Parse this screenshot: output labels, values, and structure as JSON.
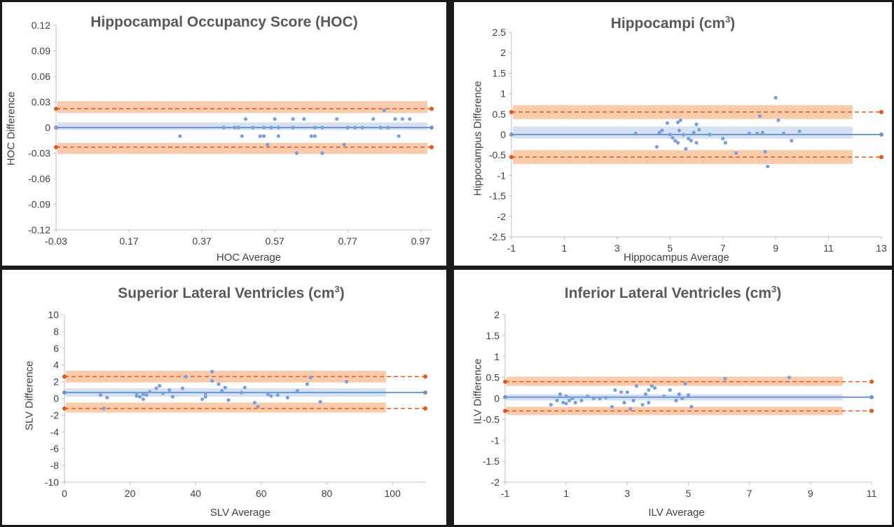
{
  "chart_data": [
    {
      "type": "scatter",
      "title": "Hippocampal Occupancy Score (HOC)",
      "title_sup": "",
      "xlabel": "HOC Average",
      "ylabel": "HOC Difference",
      "xlim": [
        -0.03,
        1.0
      ],
      "ylim": [
        -0.12,
        0.12
      ],
      "xticks": [
        "-0.03",
        "0.17",
        "0.37",
        "0.57",
        "0.77",
        "0.97"
      ],
      "yticks": [
        "-0.12",
        "-0.09",
        "-0.06",
        "-0.03",
        "0",
        "0.03",
        "0.06",
        "0.09",
        "0.12"
      ],
      "mean": 0,
      "mean_ci": [
        -0.003,
        0.006
      ],
      "loa_upper": 0.022,
      "loa_upper_ci": [
        0.017,
        0.031
      ],
      "loa_lower": -0.023,
      "loa_lower_ci": [
        -0.031,
        -0.018
      ],
      "points": [
        [
          0.31,
          -0.01
        ],
        [
          0.43,
          0.0
        ],
        [
          0.46,
          0.0
        ],
        [
          0.47,
          0.0
        ],
        [
          0.48,
          -0.01
        ],
        [
          0.49,
          0.01
        ],
        [
          0.51,
          0.0
        ],
        [
          0.53,
          -0.01
        ],
        [
          0.54,
          -0.01
        ],
        [
          0.54,
          0.0
        ],
        [
          0.55,
          -0.02
        ],
        [
          0.56,
          0.0
        ],
        [
          0.57,
          0.01
        ],
        [
          0.58,
          0.0
        ],
        [
          0.58,
          -0.01
        ],
        [
          0.62,
          0.01
        ],
        [
          0.62,
          0.0
        ],
        [
          0.63,
          -0.03
        ],
        [
          0.65,
          0.01
        ],
        [
          0.67,
          -0.01
        ],
        [
          0.68,
          -0.01
        ],
        [
          0.68,
          0.0
        ],
        [
          0.7,
          -0.03
        ],
        [
          0.7,
          0.0
        ],
        [
          0.74,
          0.01
        ],
        [
          0.76,
          -0.02
        ],
        [
          0.77,
          0.0
        ],
        [
          0.79,
          0.0
        ],
        [
          0.81,
          0.0
        ],
        [
          0.84,
          0.01
        ],
        [
          0.86,
          0.0
        ],
        [
          0.87,
          0.02
        ],
        [
          0.88,
          0.0
        ],
        [
          0.9,
          0.01
        ],
        [
          0.91,
          -0.01
        ],
        [
          0.92,
          0.01
        ],
        [
          0.94,
          0.01
        ]
      ]
    },
    {
      "type": "scatter",
      "title": "Hippocampi (cm",
      "title_sup": "3",
      "title_end": ")",
      "xlabel": "Hippocampus Average",
      "ylabel": "Hippocampus Difference",
      "xlim": [
        -1,
        13
      ],
      "ylim": [
        -2.5,
        2.5
      ],
      "xticks": [
        "-1",
        "1",
        "3",
        "5",
        "7",
        "9",
        "11",
        "13"
      ],
      "yticks": [
        "-2.5",
        "-2",
        "-1.5",
        "-1",
        "-0.5",
        "0",
        "0.5",
        "1",
        "1.5",
        "2",
        "2.5"
      ],
      "mean": 0,
      "mean_ci": [
        -0.1,
        0.2
      ],
      "loa_upper": 0.55,
      "loa_upper_ci": [
        0.38,
        0.72
      ],
      "loa_lower": -0.55,
      "loa_lower_ci": [
        -0.72,
        -0.38
      ],
      "points": [
        [
          3.7,
          0.03
        ],
        [
          4.5,
          -0.3
        ],
        [
          4.6,
          0.05
        ],
        [
          4.7,
          0.1
        ],
        [
          4.9,
          0.28
        ],
        [
          5.0,
          0.0
        ],
        [
          5.1,
          -0.08
        ],
        [
          5.2,
          -0.15
        ],
        [
          5.3,
          0.3
        ],
        [
          5.3,
          -0.2
        ],
        [
          5.35,
          0.1
        ],
        [
          5.4,
          0.35
        ],
        [
          5.5,
          0.0
        ],
        [
          5.6,
          -0.35
        ],
        [
          5.7,
          -0.1
        ],
        [
          5.8,
          -0.15
        ],
        [
          5.9,
          0.05
        ],
        [
          6.0,
          0.25
        ],
        [
          6.0,
          -0.2
        ],
        [
          6.1,
          0.12
        ],
        [
          6.5,
          0.0
        ],
        [
          7.0,
          -0.1
        ],
        [
          7.1,
          -0.2
        ],
        [
          7.5,
          -0.45
        ],
        [
          8.0,
          0.03
        ],
        [
          8.3,
          0.03
        ],
        [
          8.4,
          0.45
        ],
        [
          8.5,
          0.05
        ],
        [
          8.6,
          -0.42
        ],
        [
          8.7,
          -0.78
        ],
        [
          9.0,
          0.9
        ],
        [
          9.1,
          0.35
        ],
        [
          9.3,
          0.03
        ],
        [
          9.6,
          -0.15
        ],
        [
          9.9,
          0.08
        ]
      ]
    },
    {
      "type": "scatter",
      "title": "Superior Lateral Ventricles (cm",
      "title_sup": "3",
      "title_end": ")",
      "xlabel": "SLV Average",
      "ylabel": "SLV Difference",
      "xlim": [
        0,
        110
      ],
      "ylim": [
        -10,
        10
      ],
      "xticks": [
        "0",
        "20",
        "40",
        "60",
        "80",
        "100"
      ],
      "yticks": [
        "-10",
        "-8",
        "-6",
        "-4",
        "-2",
        "0",
        "2",
        "4",
        "6",
        "8",
        "10"
      ],
      "mean": 0.7,
      "mean_ci": [
        0.2,
        1.2
      ],
      "loa_upper": 2.6,
      "loa_upper_ci": [
        1.9,
        3.3
      ],
      "loa_lower": -1.2,
      "loa_lower_ci": [
        -1.7,
        -0.5
      ],
      "points": [
        [
          11,
          0.4
        ],
        [
          12,
          -1.2
        ],
        [
          13,
          0.1
        ],
        [
          22,
          0.3
        ],
        [
          22,
          0.6
        ],
        [
          23,
          0.2
        ],
        [
          24,
          -0.1
        ],
        [
          24,
          0.5
        ],
        [
          25,
          0.4
        ],
        [
          26,
          0.8
        ],
        [
          28,
          1.2
        ],
        [
          29,
          1.5
        ],
        [
          30,
          0.6
        ],
        [
          32,
          1.0
        ],
        [
          33,
          0.2
        ],
        [
          36,
          1.2
        ],
        [
          37,
          2.6
        ],
        [
          42,
          -0.1
        ],
        [
          43,
          0.6
        ],
        [
          43,
          0.2
        ],
        [
          45,
          3.2
        ],
        [
          45,
          2.1
        ],
        [
          47,
          1.7
        ],
        [
          48,
          0.9
        ],
        [
          49,
          1.3
        ],
        [
          50,
          -0.2
        ],
        [
          54,
          0.7
        ],
        [
          55,
          1.3
        ],
        [
          58,
          -0.5
        ],
        [
          59,
          -1.0
        ],
        [
          62,
          0.5
        ],
        [
          63,
          0.3
        ],
        [
          65,
          0.4
        ],
        [
          68,
          0.1
        ],
        [
          71,
          0.9
        ],
        [
          74,
          1.7
        ],
        [
          75,
          2.5
        ],
        [
          78,
          -0.4
        ],
        [
          86,
          2.0
        ]
      ]
    },
    {
      "type": "scatter",
      "title": "Inferior Lateral Ventricles (cm",
      "title_sup": "3",
      "title_end": ")",
      "xlabel": "ILV Average",
      "ylabel": "ILV Difference",
      "xlim": [
        -1,
        11
      ],
      "ylim": [
        -2,
        2
      ],
      "xticks": [
        "-1",
        "1",
        "3",
        "5",
        "7",
        "9",
        "11"
      ],
      "yticks": [
        "-2",
        "-1.5",
        "-1",
        "-0.5",
        "0",
        "0.5",
        "1",
        "1.5",
        "2"
      ],
      "mean": 0.03,
      "mean_ci": [
        -0.05,
        0.1
      ],
      "loa_upper": 0.4,
      "loa_upper_ci": [
        0.3,
        0.52
      ],
      "loa_lower": -0.3,
      "loa_lower_ci": [
        -0.4,
        -0.2
      ],
      "points": [
        [
          0.5,
          -0.15
        ],
        [
          0.7,
          -0.05
        ],
        [
          0.8,
          0.1
        ],
        [
          0.9,
          -0.1
        ],
        [
          1.0,
          0.05
        ],
        [
          1.0,
          -0.12
        ],
        [
          1.1,
          -0.05
        ],
        [
          1.2,
          0.0
        ],
        [
          1.3,
          -0.1
        ],
        [
          1.5,
          -0.05
        ],
        [
          1.7,
          0.05
        ],
        [
          1.9,
          0.0
        ],
        [
          2.1,
          0.0
        ],
        [
          2.3,
          0.02
        ],
        [
          2.5,
          -0.2
        ],
        [
          2.6,
          0.2
        ],
        [
          2.8,
          0.15
        ],
        [
          2.9,
          -0.1
        ],
        [
          3.0,
          0.15
        ],
        [
          3.1,
          -0.25
        ],
        [
          3.2,
          -0.05
        ],
        [
          3.3,
          0.3
        ],
        [
          3.5,
          -0.15
        ],
        [
          3.6,
          0.1
        ],
        [
          3.7,
          -0.1
        ],
        [
          3.7,
          0.2
        ],
        [
          3.8,
          0.3
        ],
        [
          3.9,
          0.25
        ],
        [
          4.2,
          0.05
        ],
        [
          4.4,
          0.2
        ],
        [
          4.6,
          -0.05
        ],
        [
          4.7,
          0.1
        ],
        [
          4.8,
          0.0
        ],
        [
          4.9,
          0.35
        ],
        [
          5.0,
          0.08
        ],
        [
          5.1,
          -0.2
        ],
        [
          6.2,
          0.47
        ],
        [
          8.3,
          0.5
        ]
      ]
    }
  ]
}
